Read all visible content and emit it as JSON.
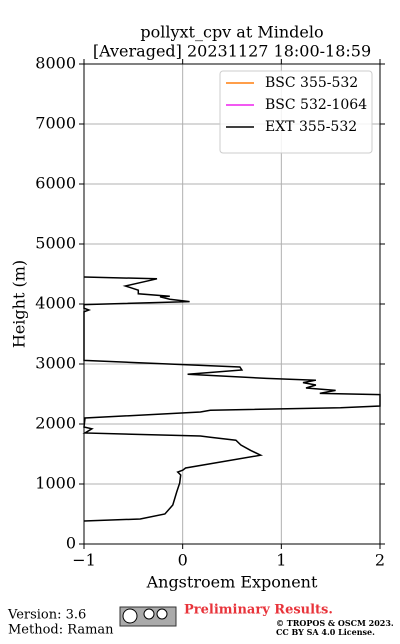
{
  "chart_data": {
    "type": "line",
    "title": "pollyxt_cpv at Mindelo",
    "subtitle": "[Averaged] 20231127 18:00-18:59",
    "x_label": "Angstroem Exponent",
    "y_label": "Height (m)",
    "xlim": [
      -1,
      2
    ],
    "xticks": [
      {
        "value": -1,
        "label": "−1"
      },
      0,
      1,
      2
    ],
    "ylim": [
      0,
      8000
    ],
    "yticks": [
      0,
      1000,
      2000,
      3000,
      4000,
      5000,
      6000,
      7000,
      8000
    ],
    "grid": true,
    "legend": "upper right",
    "heights": [
      383,
      417,
      500,
      650,
      867,
      1017,
      1150,
      1200,
      1230,
      1267,
      1480,
      1560,
      1650,
      1730,
      1780,
      1800,
      1850,
      1920,
      1950,
      2100,
      2200,
      2230,
      2270,
      2300,
      2490,
      2510,
      2560,
      2600,
      2650,
      2690,
      2730,
      2760,
      2830,
      2900,
      2950,
      3060,
      3870,
      3900,
      3930,
      3990,
      4040,
      4080,
      4120,
      4130,
      4170,
      4230,
      4300,
      4420,
      4450
    ],
    "series": [
      {
        "name": "BSC 355-532",
        "color": "#ff7f0e",
        "values": [
          null,
          null,
          null,
          null,
          null,
          null,
          null,
          null,
          null,
          null,
          null,
          null,
          null,
          null,
          null,
          null,
          null,
          null,
          null,
          null,
          null,
          null,
          null,
          null,
          null,
          null,
          null,
          null,
          null,
          null,
          null,
          null,
          null,
          null,
          null,
          null,
          null,
          null,
          null,
          null,
          null,
          null,
          null,
          null,
          null,
          null,
          null,
          null,
          null
        ]
      },
      {
        "name": "BSC 532-1064",
        "color": "#ee22ee",
        "values": [
          null,
          null,
          null,
          null,
          null,
          null,
          null,
          null,
          null,
          null,
          null,
          null,
          null,
          null,
          null,
          null,
          null,
          null,
          null,
          null,
          null,
          null,
          null,
          null,
          null,
          null,
          null,
          null,
          null,
          null,
          null,
          null,
          null,
          null,
          null,
          null,
          null,
          null,
          null,
          null,
          null,
          null,
          null,
          null,
          null,
          null,
          null,
          null,
          null
        ]
      },
      {
        "name": "EXT 355-532",
        "color": "#000000",
        "values": [
          -1,
          -0.43,
          -0.18,
          -0.1,
          -0.06,
          -0.03,
          -0.02,
          -0.05,
          0,
          0.03,
          0.79,
          0.69,
          0.59,
          0.54,
          0.28,
          0.18,
          -0.99,
          -0.92,
          -1,
          -0.99,
          0.18,
          0.28,
          1.6,
          2.0,
          2.0,
          1.39,
          1.55,
          1.25,
          1.35,
          1.22,
          1.35,
          0.85,
          0.05,
          0.6,
          0.58,
          -1,
          -1,
          -0.95,
          -1,
          -1,
          0.07,
          -0.13,
          -0.23,
          -0.13,
          -0.45,
          -0.45,
          -0.58,
          -0.26,
          -1
        ]
      }
    ]
  },
  "footer": {
    "version": "Version: 3.6",
    "method": "Method: Raman",
    "status": "Preliminary Results.",
    "copyright": "© TROPOS & OSCM 2023.",
    "license": "CC BY SA 4.0 License."
  }
}
